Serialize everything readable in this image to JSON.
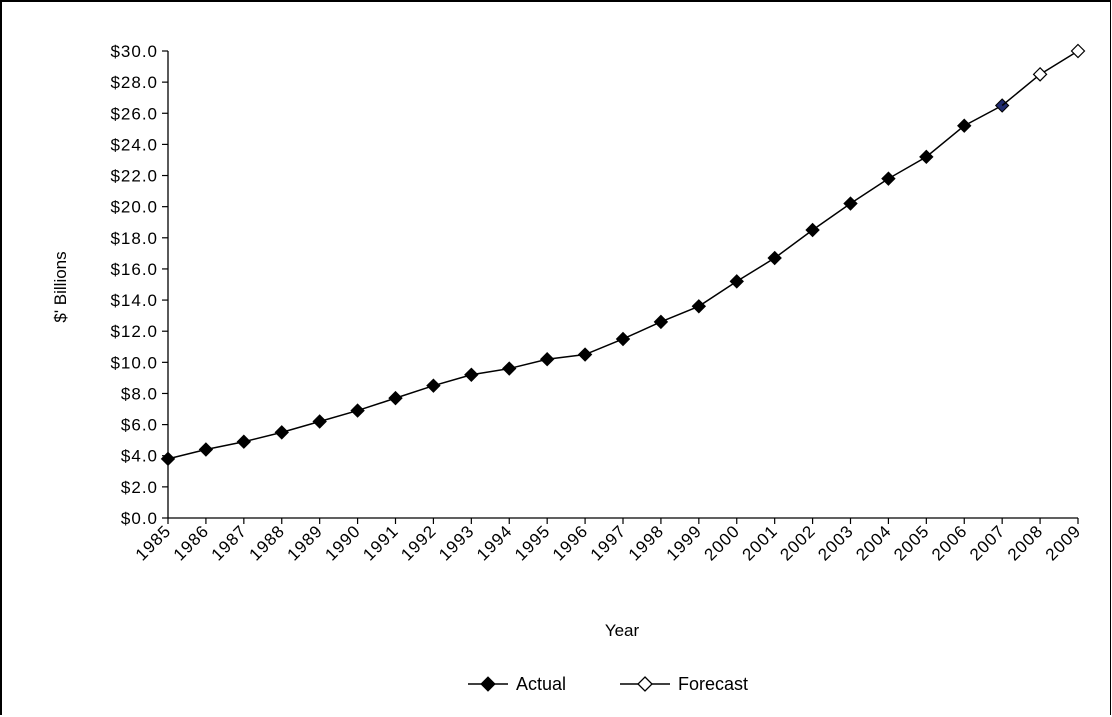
{
  "chart_data": {
    "type": "line",
    "title": "",
    "xlabel": "Year",
    "ylabel": "$' Billions",
    "ylim": [
      0,
      30
    ],
    "y_tick_step": 2,
    "y_tick_format": "$#.0",
    "grid": false,
    "legend_position": "bottom-center",
    "x": [
      "1985",
      "1986",
      "1987",
      "1988",
      "1989",
      "1990",
      "1991",
      "1992",
      "1993",
      "1994",
      "1995",
      "1996",
      "1997",
      "1998",
      "1999",
      "2000",
      "2001",
      "2002",
      "2003",
      "2004",
      "2005",
      "2006",
      "2007",
      "2008",
      "2009"
    ],
    "series": [
      {
        "name": "Actual",
        "marker": "filled-diamond",
        "color": "#000000",
        "values": [
          3.8,
          4.4,
          4.9,
          5.5,
          6.2,
          6.9,
          7.7,
          8.5,
          9.2,
          9.6,
          10.2,
          10.5,
          11.5,
          12.6,
          13.6,
          15.2,
          16.7,
          18.5,
          20.2,
          21.8,
          23.2,
          25.2,
          26.5,
          null,
          null
        ]
      },
      {
        "name": "Forecast",
        "marker": "hollow-diamond",
        "color": "#000000",
        "values": [
          null,
          null,
          null,
          null,
          null,
          null,
          null,
          null,
          null,
          null,
          null,
          null,
          null,
          null,
          null,
          null,
          null,
          null,
          null,
          null,
          null,
          null,
          26.5,
          28.5,
          30.0
        ]
      }
    ],
    "highlight_point_color": "#1f2a6e"
  }
}
